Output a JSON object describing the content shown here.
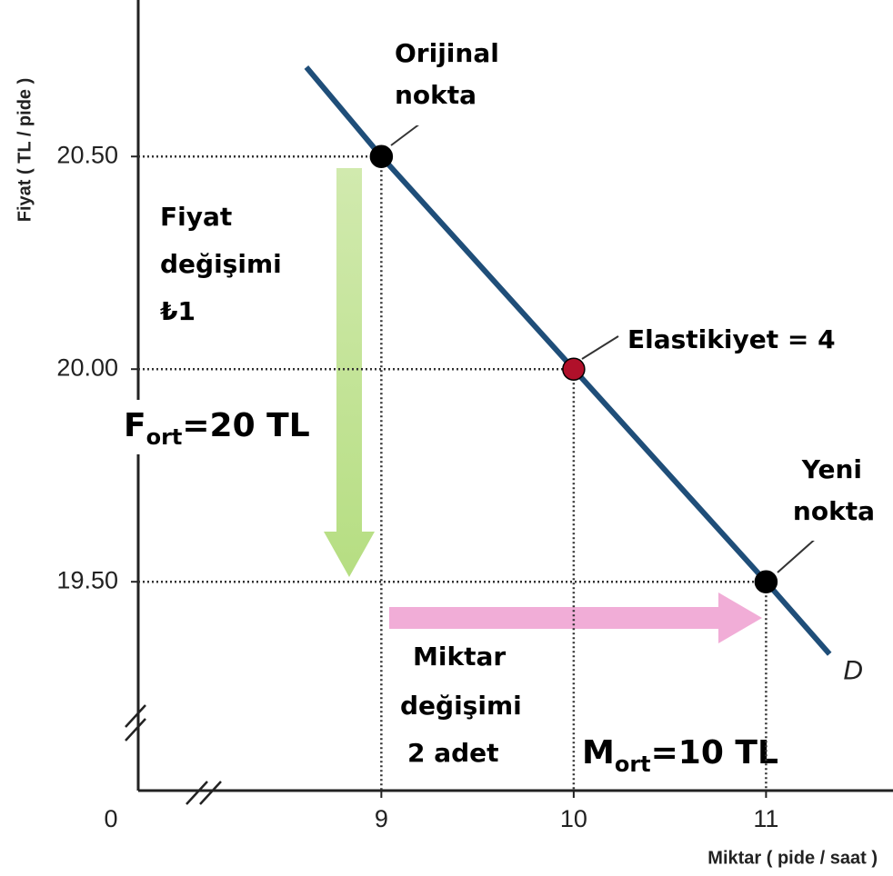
{
  "chart_data": {
    "type": "line",
    "x_label": "Miktar ( pide / saat )",
    "y_label": "Fiyat ( TL / pide )",
    "origin_label": 0,
    "xlim": [
      7.736,
      11.66
    ],
    "ylim": [
      19.009,
      20.868
    ],
    "xticks": [
      9,
      10,
      11
    ],
    "yticks": [
      {
        "value": 19.5,
        "label": "19.50"
      },
      {
        "value": 20.0,
        "label": "20.00"
      },
      {
        "value": 20.5,
        "label": "20.50"
      }
    ],
    "series": [
      {
        "name": "D",
        "color": "#1f4e79",
        "x": [
          8.61,
          9,
          10,
          11,
          11.33
        ],
        "values": [
          20.71,
          20.5,
          20.0,
          19.5,
          19.33
        ]
      }
    ],
    "points": {
      "x": [
        9,
        10,
        11
      ],
      "values": [
        20.5,
        20.0,
        19.5
      ],
      "colors": [
        "#000000",
        "#b0102a",
        "#000000"
      ]
    },
    "annotations": {
      "original_point": [
        "Orijinal",
        "nokta"
      ],
      "elasticity": "Elastikiyet = 4",
      "new_point": [
        "Yeni",
        "nokta"
      ],
      "price_change": [
        "Fiyat",
        "değişimi",
        "₺1"
      ],
      "quantity_change": [
        "Miktar",
        "değişimi",
        "2 adet"
      ],
      "avg_price": {
        "main": "F",
        "sub": "ort",
        "rest": "=20 TL"
      },
      "avg_quantity": {
        "main": "M",
        "sub": "ort",
        "rest": "=10 TL"
      }
    }
  }
}
